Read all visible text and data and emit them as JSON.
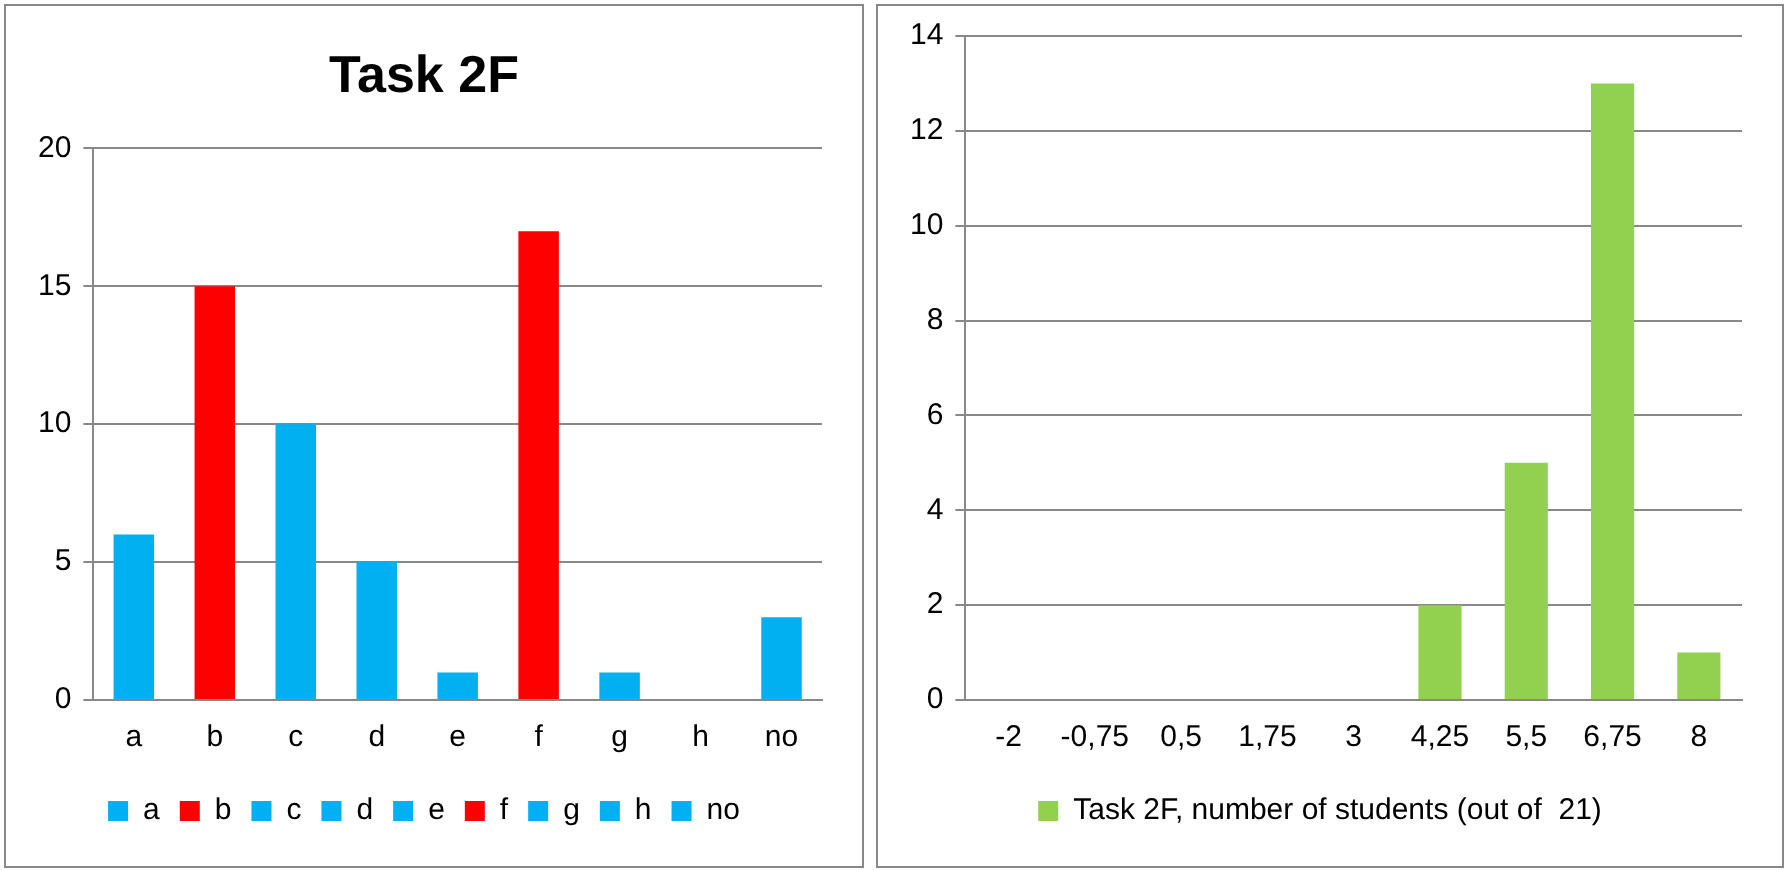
{
  "chart_data": [
    {
      "type": "bar",
      "title": "Task 2F",
      "categories": [
        "a",
        "b",
        "c",
        "d",
        "e",
        "f",
        "g",
        "h",
        "no"
      ],
      "stacked": true,
      "series": [
        {
          "name": "a",
          "color": "#00b0f0",
          "values": [
            6,
            null,
            null,
            null,
            null,
            null,
            null,
            null,
            null
          ]
        },
        {
          "name": "b",
          "color": "#ff0000",
          "values": [
            null,
            15,
            null,
            null,
            null,
            null,
            null,
            null,
            null
          ]
        },
        {
          "name": "c",
          "color": "#00b0f0",
          "values": [
            null,
            null,
            10,
            null,
            null,
            null,
            null,
            null,
            null
          ]
        },
        {
          "name": "d",
          "color": "#00b0f0",
          "values": [
            null,
            null,
            null,
            5,
            null,
            null,
            null,
            null,
            null
          ]
        },
        {
          "name": "e",
          "color": "#00b0f0",
          "values": [
            null,
            null,
            null,
            null,
            1,
            null,
            null,
            null,
            null
          ]
        },
        {
          "name": "f",
          "color": "#ff0000",
          "values": [
            null,
            null,
            null,
            null,
            null,
            17,
            null,
            null,
            null
          ]
        },
        {
          "name": "g",
          "color": "#00b0f0",
          "values": [
            null,
            null,
            null,
            null,
            null,
            null,
            1,
            null,
            null
          ]
        },
        {
          "name": "h",
          "color": "#00b0f0",
          "values": [
            null,
            null,
            null,
            null,
            null,
            null,
            null,
            0,
            null
          ]
        },
        {
          "name": "no",
          "color": "#00b0f0",
          "values": [
            null,
            null,
            null,
            null,
            null,
            null,
            null,
            null,
            3
          ]
        }
      ],
      "ylim": [
        0,
        20
      ],
      "yticks": [
        0,
        5,
        10,
        15,
        20
      ],
      "grid": "y",
      "legend": "bottom"
    },
    {
      "type": "bar",
      "categories": [
        "-2",
        "-0,75",
        "0,5",
        "1,75",
        "3",
        "4,25",
        "5,5",
        "6,75",
        "8"
      ],
      "series": [
        {
          "name": "Task 2F, number of students (out of  21)",
          "color": "#92d050",
          "values": [
            0,
            0,
            0,
            0,
            0,
            2,
            5,
            13,
            1
          ]
        }
      ],
      "ylim": [
        0,
        14
      ],
      "yticks": [
        0,
        2,
        4,
        6,
        8,
        10,
        12,
        14
      ],
      "grid": "y",
      "legend": "bottom"
    }
  ]
}
